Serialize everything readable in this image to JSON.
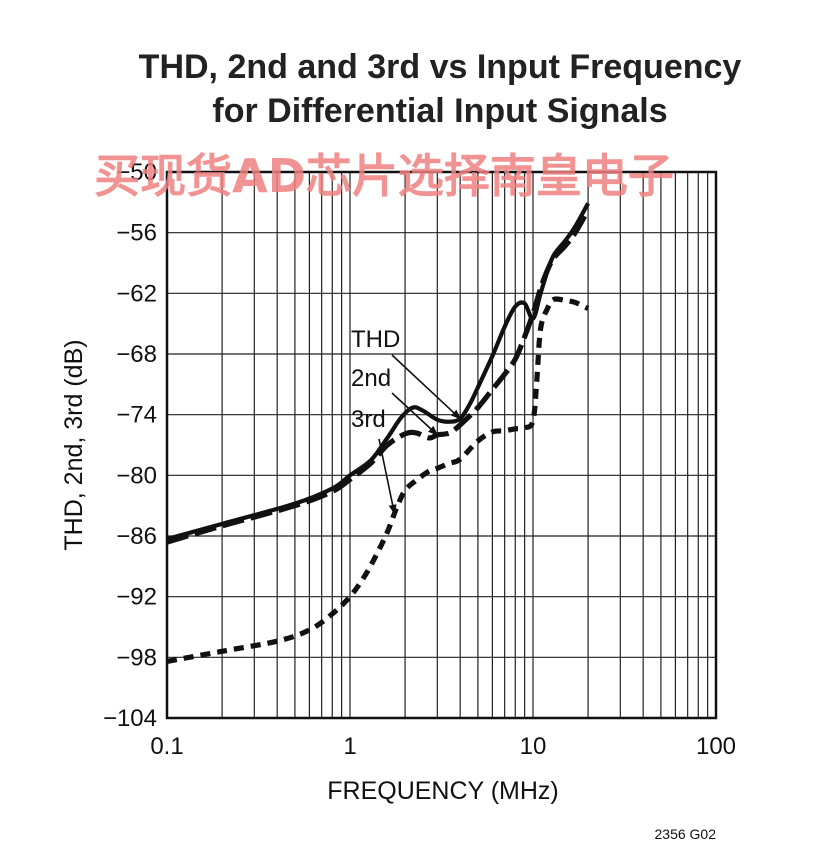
{
  "chart_data": {
    "type": "line",
    "title": "THD, 2nd and 3rd vs Input Frequency",
    "subtitle": "for Differential Input Signals",
    "xlabel": "FREQUENCY (MHz)",
    "ylabel": "THD, 2nd, 3rd (dB)",
    "x_scale": "log",
    "xlim": [
      0.1,
      100
    ],
    "ylim": [
      -104,
      -50
    ],
    "x_ticks": [
      "0.1",
      "1",
      "10",
      "100"
    ],
    "y_ticks": [
      "−50",
      "−56",
      "−62",
      "−68",
      "−74",
      "−80",
      "−86",
      "−92",
      "−98",
      "−104"
    ],
    "grid": true,
    "series": [
      {
        "name": "THD",
        "style": "solid",
        "x": [
          0.1,
          0.2,
          0.5,
          0.8,
          1.0,
          1.3,
          1.6,
          1.9,
          2.2,
          2.5,
          3.0,
          3.5,
          4.0,
          4.5,
          5.0,
          6.0,
          7.0,
          8.0,
          9.0,
          10.0,
          11.0,
          12.0,
          13.0,
          15.0,
          17.0,
          20.0
        ],
        "y": [
          -86.3,
          -84.8,
          -82.8,
          -81.3,
          -80.0,
          -78.5,
          -76.3,
          -74.3,
          -73.3,
          -73.6,
          -74.5,
          -74.7,
          -74.4,
          -73.0,
          -71.3,
          -68.2,
          -65.3,
          -63.3,
          -63.0,
          -64.5,
          -62.0,
          -59.8,
          -58.2,
          -56.8,
          -55.4,
          -53.1
        ]
      },
      {
        "name": "2nd",
        "style": "dashed",
        "x": [
          0.1,
          0.2,
          0.5,
          0.8,
          1.0,
          1.3,
          1.6,
          2.0,
          2.3,
          2.7,
          3.0,
          3.5,
          4.0,
          5.0,
          6.0,
          7.0,
          8.0,
          9.0,
          10.0,
          11.0,
          12.0,
          13.0,
          15.0,
          17.0,
          20.0
        ],
        "y": [
          -86.6,
          -85.0,
          -83.0,
          -81.6,
          -80.4,
          -78.8,
          -77.0,
          -75.9,
          -75.8,
          -76.3,
          -76.0,
          -75.8,
          -75.0,
          -73.3,
          -71.5,
          -70.0,
          -68.5,
          -66.3,
          -64.0,
          -61.5,
          -59.7,
          -58.5,
          -57.3,
          -56.0,
          -53.8
        ]
      },
      {
        "name": "3rd",
        "style": "dotted",
        "x": [
          0.1,
          0.2,
          0.4,
          0.6,
          0.8,
          1.0,
          1.2,
          1.4,
          1.6,
          1.8,
          2.0,
          2.3,
          2.7,
          3.0,
          3.5,
          4.0,
          5.0,
          6.0,
          7.0,
          8.0,
          9.0,
          10.0,
          10.5,
          11.0,
          12.0,
          13.0,
          15.0,
          17.0,
          20.0
        ],
        "y": [
          -98.4,
          -97.4,
          -96.4,
          -95.3,
          -93.7,
          -92.0,
          -90.0,
          -87.8,
          -85.6,
          -83.2,
          -81.5,
          -80.5,
          -79.6,
          -79.3,
          -78.8,
          -78.4,
          -76.6,
          -75.7,
          -75.6,
          -75.4,
          -75.3,
          -74.6,
          -70.5,
          -65.5,
          -63.5,
          -62.6,
          -62.7,
          -62.9,
          -63.5
        ]
      }
    ],
    "annotations": [
      {
        "text": "THD",
        "points_to": {
          "x": 4.0,
          "y": -74.4
        }
      },
      {
        "text": "2nd",
        "points_to": {
          "x": 3.0,
          "y": -76.0
        }
      },
      {
        "text": "3rd",
        "points_to": {
          "x": 1.75,
          "y": -83.8
        }
      }
    ],
    "figure_code": "2356 G02"
  },
  "watermark": "买现货AD芯片选择南皇电子"
}
